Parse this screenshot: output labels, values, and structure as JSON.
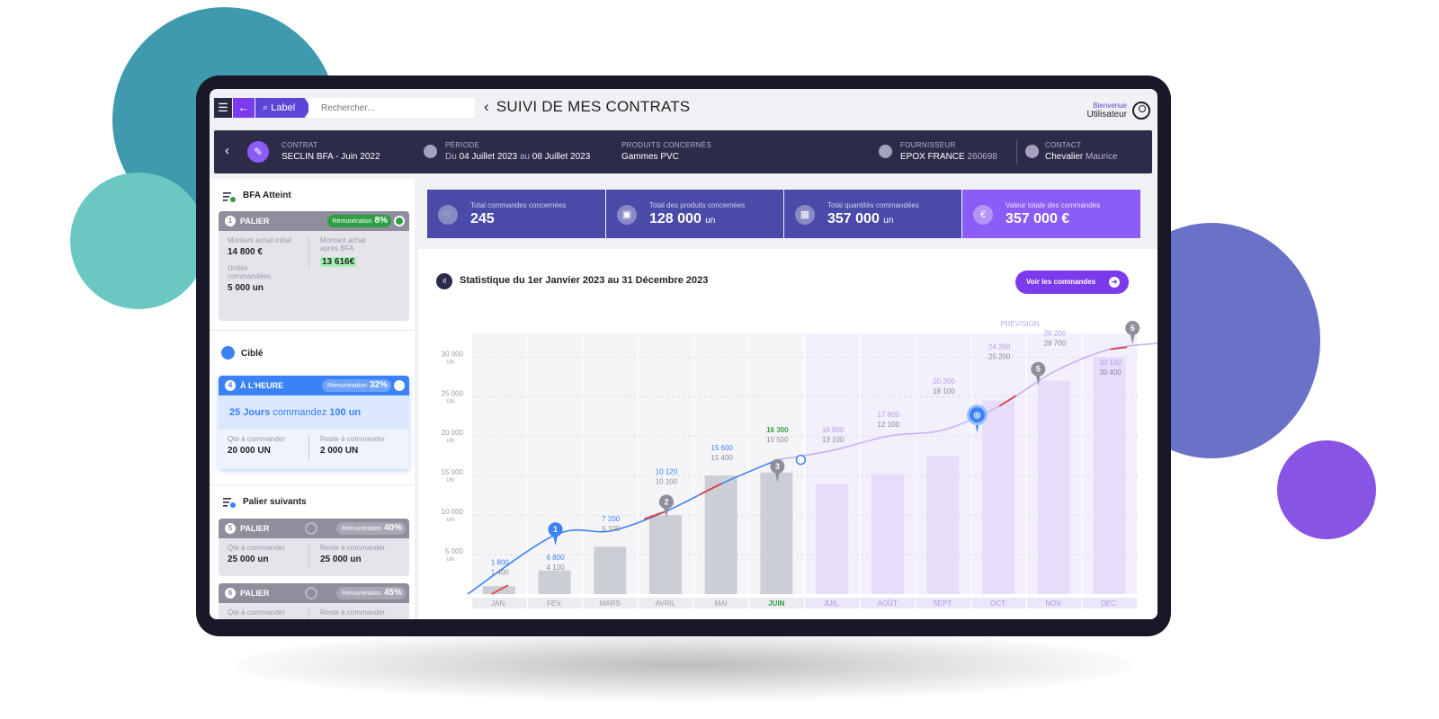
{
  "topbar": {
    "search_tag": "Label",
    "search_placeholder": "Rechercher...",
    "title": "SUIVI DE MES CONTRATS",
    "welcome": "Bienvenue",
    "user": "Utilisateur"
  },
  "contract": {
    "contrat_key": "CONTRAT",
    "contrat_value": "SECLIN  BFA - Juin 2022",
    "periode_key": "PÉRIODE",
    "periode_prefix": "Du",
    "periode_start": "04 Juillet 2023",
    "periode_mid": "au",
    "periode_end": "08 Juillet 2023",
    "produits_key": "PRODUITS CONCERNÉS",
    "produits_value": "Gammes PVC",
    "fournisseur_key": "FOURNISSEUR",
    "fournisseur_value": "EPOX FRANCE",
    "fournisseur_code": "260698",
    "contact_key": "CONTACT",
    "contact_first": "Chevalier",
    "contact_last": "Maurice"
  },
  "sidebar": {
    "bfa_title": "BFA Atteint",
    "bfa_card": {
      "num": "1",
      "title": "PALIER",
      "pill_label": "Rémunération",
      "pill_value": "8%",
      "l1": "Montant achat initial",
      "v1": "14 800 €",
      "l2": "Montant achat après BFA",
      "v2": "13 616€",
      "l3": "Unités commandées",
      "v3": "5 000 un"
    },
    "cible_title": "Ciblé",
    "cible_card": {
      "num": "4",
      "title": "À L'HEURE",
      "pill_label": "Rémunération",
      "pill_value": "32%",
      "msg_a": "25 Jours",
      "msg_b": "commandez",
      "msg_c": "100 un",
      "l1": "Qte à commander",
      "v1": "20 000 UN",
      "l2": "Reste à commander",
      "v2": "2 000 UN"
    },
    "next_title": "Palier suivants",
    "next_cards": [
      {
        "num": "5",
        "title": "PALIER",
        "pill_label": "Rémunération",
        "pill_value": "40%",
        "l1": "Qte à commander",
        "v1": "25 000 un",
        "l2": "Reste à commander",
        "v2": "25 000 un"
      },
      {
        "num": "6",
        "title": "PALIER",
        "pill_label": "Rémunération",
        "pill_value": "45%",
        "l1": "Qte à commander",
        "l2": "Reste à commander"
      }
    ]
  },
  "kpis": [
    {
      "label": "Total commandes concernées",
      "value": "245",
      "unit": "",
      "icon": "cart-icon"
    },
    {
      "label": "Total  des produits concernées",
      "value": "128 000",
      "unit": "un",
      "icon": "box-icon"
    },
    {
      "label": "Total quantités commandées",
      "value": "357  000",
      "unit": "un",
      "icon": "boxes-icon"
    },
    {
      "label": "Valeur totale des commandes",
      "value": "357  000 €",
      "unit": "",
      "icon": "euro-icon"
    }
  ],
  "stats": {
    "title": "Statistique du 1er Janvier 2023 au 31 Décembre 2023",
    "button": "Voir les commandes",
    "prevision_label": "PRÉVISION"
  },
  "colors": {
    "navy": "#2d2b4a",
    "indigo": "#4a4aa8",
    "purple": "#7c3aed",
    "green": "#2ea043",
    "blue": "#3b82f6",
    "red": "#e04040"
  },
  "chart_data": {
    "type": "bar",
    "categories": [
      "JAN.",
      "FEV.",
      "MARS",
      "AVRIL",
      "MAI",
      "JUIN",
      "JUIL.",
      "AOÛT",
      "SEPT.",
      "OCT.",
      "NOV.",
      "DEC."
    ],
    "values": [
      1000,
      3000,
      6000,
      10000,
      15000,
      15400,
      14000,
      15200,
      17500,
      24500,
      27000,
      30000
    ],
    "forecast_from_index": 6,
    "current_index": 5,
    "y_ticks": [
      "30 000",
      "25 000",
      "20 000",
      "15 000",
      "10 000",
      "5 000"
    ],
    "y_tick_values": [
      30000,
      25000,
      20000,
      15000,
      10000,
      5000
    ],
    "y_tick_unit": "UN",
    "ylim": [
      0,
      33000
    ],
    "cumulative_line": [
      {
        "x": 0,
        "y": 0
      },
      {
        "x": 1,
        "y": 7500
      },
      {
        "x": 2,
        "y": 8000
      },
      {
        "x": 3,
        "y": 10500
      },
      {
        "x": 4,
        "y": 14000
      },
      {
        "x": 5,
        "y": 17000
      },
      {
        "x": 6,
        "y": 18200
      },
      {
        "x": 7,
        "y": 20000
      },
      {
        "x": 8,
        "y": 20800
      },
      {
        "x": 9,
        "y": 23800
      },
      {
        "x": 10,
        "y": 28200
      },
      {
        "x": 11,
        "y": 31000
      },
      {
        "x": 11.95,
        "y": 31800
      }
    ],
    "annotations": [
      {
        "x": 0,
        "y": 3700,
        "top": "1 800",
        "bottom": "1 400",
        "tone": "blue"
      },
      {
        "x": 1,
        "y": 4300,
        "top": "6 800",
        "bottom": "4 100",
        "tone": "blue"
      },
      {
        "x": 2,
        "y": 9200,
        "top": "7 200",
        "bottom": "5 100",
        "tone": "blue"
      },
      {
        "x": 3,
        "y": 15200,
        "top": "10 120",
        "bottom": "10 100",
        "tone": "blue"
      },
      {
        "x": 4,
        "y": 18200,
        "top": "15 600",
        "bottom": "15 400",
        "tone": "blue"
      },
      {
        "x": 5,
        "y": 20500,
        "top": "16 300",
        "bottom": "10 500",
        "tone": "green"
      },
      {
        "x": 6,
        "y": 20500,
        "top": "16 600",
        "bottom": "13 100",
        "tone": "purple"
      },
      {
        "x": 7,
        "y": 22400,
        "top": "17 800",
        "bottom": "12 100",
        "tone": "purple"
      },
      {
        "x": 8,
        "y": 26600,
        "top": "20 200",
        "bottom": "18 100",
        "tone": "purple"
      },
      {
        "x": 9,
        "y": 31000,
        "top": "24 200",
        "bottom": "25 200",
        "tone": "purple"
      },
      {
        "x": 10,
        "y": 32700,
        "top": "26 200",
        "bottom": "28 700",
        "tone": "purple"
      },
      {
        "x": 11,
        "y": 29000,
        "top": "30 100",
        "bottom": "30 400",
        "tone": "purple"
      }
    ],
    "milestones": [
      {
        "x": 1,
        "y": 7500,
        "label": "1",
        "tone": "blue"
      },
      {
        "x": 3,
        "y": 11000,
        "label": "2",
        "tone": "gray"
      },
      {
        "x": 5,
        "y": 15500,
        "label": "3",
        "tone": "gray"
      },
      {
        "x": 8.6,
        "y": 22000,
        "label": "4",
        "tone": "target"
      },
      {
        "x": 9.7,
        "y": 27800,
        "label": "5",
        "tone": "gray"
      },
      {
        "x": 11.4,
        "y": 33000,
        "label": "6",
        "tone": "gray"
      }
    ]
  }
}
